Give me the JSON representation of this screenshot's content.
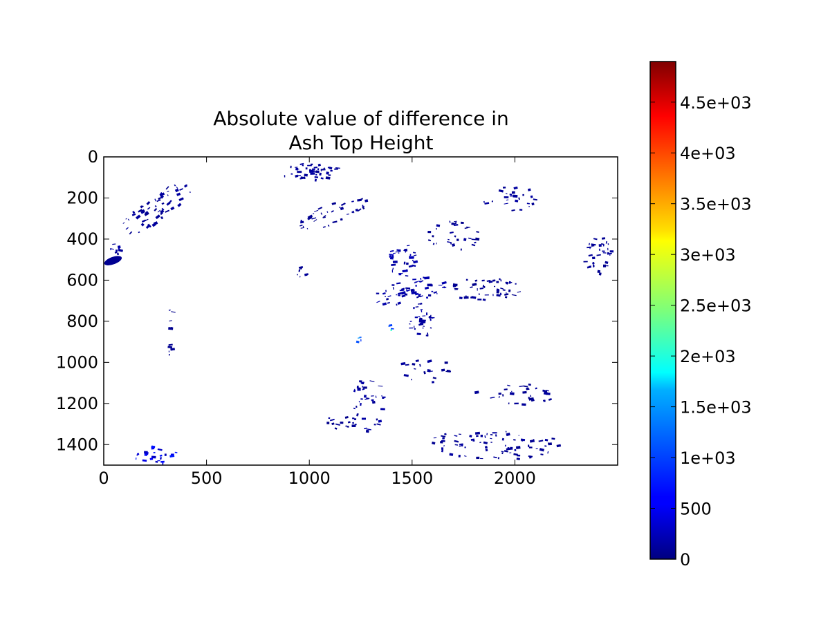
{
  "chart_data": {
    "type": "heatmap",
    "title_lines": [
      "Absolute value of difference in",
      "Ash Top Height"
    ],
    "xlabel": "",
    "ylabel": "",
    "xlim": [
      0,
      2500
    ],
    "ylim": [
      1500,
      0
    ],
    "x_ticks": [
      0,
      500,
      1000,
      1500,
      2000
    ],
    "y_ticks": [
      0,
      200,
      400,
      600,
      800,
      1000,
      1200,
      1400
    ],
    "grid": false,
    "colormap": "jet",
    "colorbar": {
      "range": [
        0,
        4900
      ],
      "ticks": [
        0,
        500,
        1000,
        1500,
        2000,
        2500,
        3000,
        3500,
        4000,
        4500
      ],
      "tick_labels": [
        "0",
        "500",
        "1e+03",
        "1.5e+03",
        "2e+03",
        "2.5e+03",
        "3e+03",
        "3.5e+03",
        "4e+03",
        "4.5e+03"
      ],
      "placement": "right"
    },
    "field_color_low": "#000080",
    "field_color_mid": "#0050ff",
    "background_color": "#ffffff",
    "clusters": [
      {
        "x": 250,
        "y": 250,
        "rx": 220,
        "ry": 60,
        "n": 60,
        "angle": -35,
        "value": 120
      },
      {
        "x": 45,
        "y": 505,
        "rx": 45,
        "ry": 18,
        "n": 1,
        "angle": -20,
        "value": 90,
        "solid": true
      },
      {
        "x": 60,
        "y": 440,
        "rx": 30,
        "ry": 40,
        "n": 10,
        "angle": 0,
        "value": 150
      },
      {
        "x": 1000,
        "y": 70,
        "rx": 150,
        "ry": 40,
        "n": 45,
        "angle": 0,
        "value": 120
      },
      {
        "x": 1100,
        "y": 280,
        "rx": 190,
        "ry": 50,
        "n": 40,
        "angle": -20,
        "value": 100
      },
      {
        "x": 1450,
        "y": 500,
        "rx": 70,
        "ry": 80,
        "n": 40,
        "angle": 0,
        "value": 200
      },
      {
        "x": 1480,
        "y": 650,
        "rx": 200,
        "ry": 60,
        "n": 60,
        "angle": -10,
        "value": 180
      },
      {
        "x": 1540,
        "y": 800,
        "rx": 60,
        "ry": 90,
        "n": 35,
        "angle": 0,
        "value": 150
      },
      {
        "x": 1850,
        "y": 640,
        "rx": 170,
        "ry": 60,
        "n": 50,
        "angle": 0,
        "value": 100
      },
      {
        "x": 1700,
        "y": 380,
        "rx": 130,
        "ry": 70,
        "n": 30,
        "angle": 0,
        "value": 100
      },
      {
        "x": 1970,
        "y": 200,
        "rx": 140,
        "ry": 60,
        "n": 25,
        "angle": 0,
        "value": 120
      },
      {
        "x": 2400,
        "y": 480,
        "rx": 70,
        "ry": 100,
        "n": 35,
        "angle": 0,
        "value": 100
      },
      {
        "x": 1280,
        "y": 1200,
        "rx": 80,
        "ry": 130,
        "n": 40,
        "angle": 0,
        "value": 140
      },
      {
        "x": 1150,
        "y": 1290,
        "rx": 90,
        "ry": 30,
        "n": 15,
        "angle": 0,
        "value": 100
      },
      {
        "x": 1900,
        "y": 1390,
        "rx": 320,
        "ry": 80,
        "n": 80,
        "angle": 0,
        "value": 120
      },
      {
        "x": 2000,
        "y": 1150,
        "rx": 200,
        "ry": 50,
        "n": 30,
        "angle": 0,
        "value": 100
      },
      {
        "x": 260,
        "y": 1440,
        "rx": 120,
        "ry": 50,
        "n": 25,
        "angle": 0,
        "value": 500
      },
      {
        "x": 320,
        "y": 850,
        "rx": 15,
        "ry": 120,
        "n": 10,
        "angle": 0,
        "value": 100
      },
      {
        "x": 950,
        "y": 560,
        "rx": 30,
        "ry": 30,
        "n": 8,
        "angle": 0,
        "value": 100
      },
      {
        "x": 1240,
        "y": 880,
        "rx": 15,
        "ry": 25,
        "n": 4,
        "angle": 0,
        "value": 900
      },
      {
        "x": 1390,
        "y": 830,
        "rx": 20,
        "ry": 20,
        "n": 4,
        "angle": 0,
        "value": 1500
      },
      {
        "x": 1560,
        "y": 1040,
        "rx": 150,
        "ry": 60,
        "n": 20,
        "angle": 0,
        "value": 100
      }
    ]
  }
}
